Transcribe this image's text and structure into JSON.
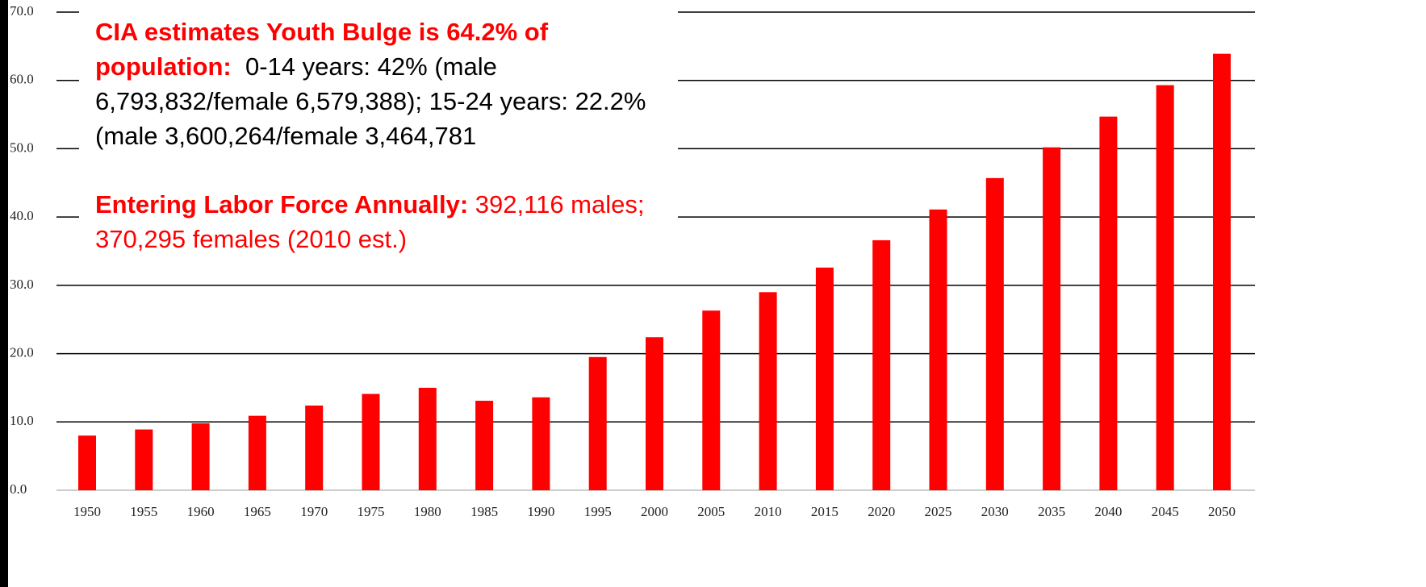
{
  "chart_data": {
    "type": "bar",
    "categories": [
      "1950",
      "1955",
      "1960",
      "1965",
      "1970",
      "1975",
      "1980",
      "1985",
      "1990",
      "1995",
      "2000",
      "2005",
      "2010",
      "2015",
      "2020",
      "2025",
      "2030",
      "2035",
      "2040",
      "2045",
      "2050"
    ],
    "values": [
      8.0,
      8.9,
      9.8,
      10.9,
      12.4,
      14.1,
      15.0,
      13.1,
      13.6,
      19.5,
      22.4,
      26.3,
      29.0,
      32.6,
      36.6,
      41.1,
      45.7,
      50.2,
      54.7,
      59.3,
      63.9
    ],
    "color": "#ff0000",
    "ylim": [
      0,
      70
    ],
    "yticks": [
      {
        "value": 0,
        "label": "0.0"
      },
      {
        "value": 10,
        "label": "10.0"
      },
      {
        "value": 20,
        "label": "20.0"
      },
      {
        "value": 30,
        "label": "30.0"
      },
      {
        "value": 40,
        "label": "40.0"
      },
      {
        "value": 50,
        "label": "50.0"
      },
      {
        "value": 60,
        "label": "60.0"
      },
      {
        "value": 70,
        "label": "70.0"
      }
    ],
    "grid": true,
    "annotations": [
      {
        "heading": "CIA estimates Youth Bulge is 64.2% of population:",
        "text": "0-14 years: 42% (male 6,793,832/female 6,579,388); 15-24 years: 22.2% (male 3,600,264/female 3,464,781"
      },
      {
        "heading": "Entering Labor Force Annually:",
        "text": "392,116 males; 370,295 females (2010 est.)"
      }
    ]
  }
}
